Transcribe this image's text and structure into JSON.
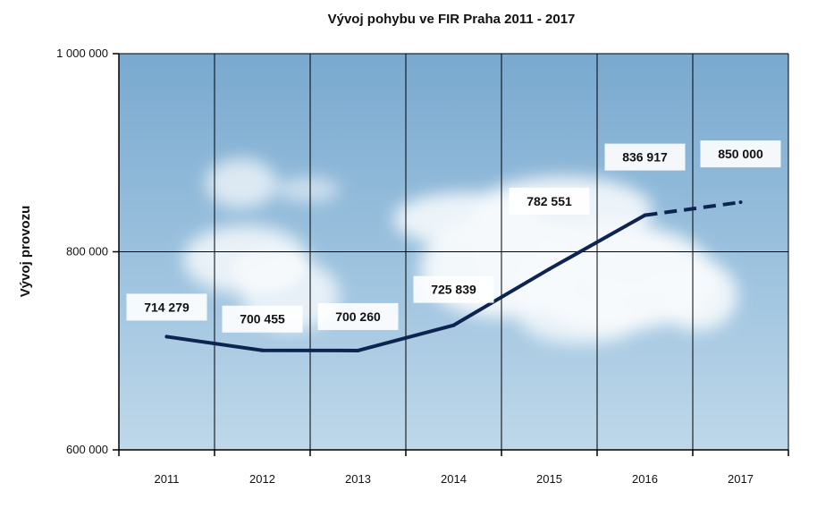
{
  "chart_data": {
    "type": "line",
    "title": "Vývoj pohybu ve FIR Praha  2011 - 2017",
    "xlabel": "",
    "ylabel": "Vývoj provozu",
    "categories": [
      "2011",
      "2012",
      "2013",
      "2014",
      "2015",
      "2016",
      "2017"
    ],
    "series": [
      {
        "values": [
          714279,
          700455,
          700260,
          725839,
          782551,
          836917,
          850000
        ],
        "labels": [
          "714 279",
          "700 455",
          "700 260",
          "725 839",
          "782 551",
          "836 917",
          "850 000"
        ],
        "color": "#0d2451",
        "dashed_from_index": 5
      }
    ],
    "ylim": [
      600000,
      1000000
    ],
    "yticks": [
      600000,
      800000,
      1000000
    ],
    "ytick_labels": [
      "600 000",
      "800 000",
      "1 000 000"
    ],
    "grid": true,
    "legend": "none",
    "background": "sky with clouds"
  }
}
